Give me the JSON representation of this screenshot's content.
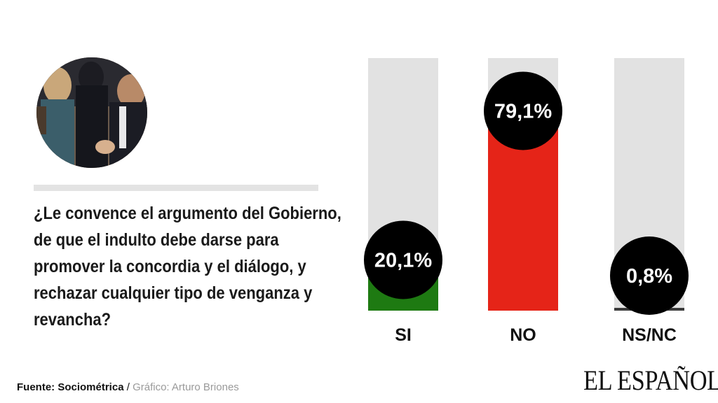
{
  "question": "¿Le convence el argumento del Gobierno, de que el indulto debe darse para promover la concordia y el diálogo, y rechazar cualquier tipo de venganza y revancha?",
  "source": {
    "label": "Fuente: Sociométrica",
    "separator": " / ",
    "credit": "Gráfico: Arturo Briones"
  },
  "brand": "EL ESPAÑOL",
  "colors": {
    "track": "#e2e2e2",
    "si": "#1e7a12",
    "no": "#e52418",
    "nsnc": "#3a3a3a",
    "badge": "#000000",
    "badge_text": "#ffffff"
  },
  "chart_data": {
    "type": "bar",
    "categories": [
      "SI",
      "NO",
      "NS/NC"
    ],
    "values": [
      20.1,
      79.1,
      0.8
    ],
    "value_labels": [
      "20,1%",
      "79,1%",
      "0,8%"
    ],
    "unit": "%",
    "ylim": [
      0,
      100
    ],
    "grid": false,
    "legend": "none",
    "title": "",
    "xlabel": "",
    "ylabel": ""
  }
}
